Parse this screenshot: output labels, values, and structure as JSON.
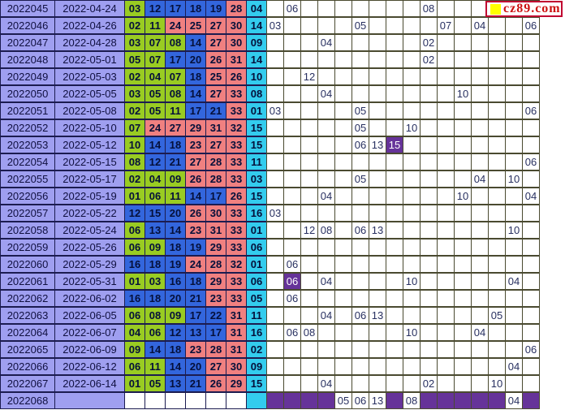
{
  "site": {
    "logo_text": "cz89.com",
    "logo_square_color": "#ffff00"
  },
  "colors": {
    "period_bg": "#9f9ff0",
    "green_ball": "#99cc22",
    "blue_ball": "#3366dd",
    "red_ball": "#f08080",
    "cyan_ball": "#33ccee",
    "hit_purple": "#663399",
    "grid_border": "#4a4a30",
    "table_border": "#1c1c50",
    "logo_red": "#cc1111"
  },
  "chart_data": {
    "type": "table",
    "legend": "lottery trend table: period, date, six red balls (green 01-11, blue 12-22, salmon 23-33), blue ball (cyan), then 16-column blue-ball trend grid; purple = hit cell; bottom purple band row = pending draw",
    "rows": [
      {
        "period": "2022045",
        "date": "2022-04-24",
        "reds": [
          [
            "03",
            "g"
          ],
          [
            "12",
            "b"
          ],
          [
            "17",
            "b"
          ],
          [
            "18",
            "b"
          ],
          [
            "19",
            "b"
          ],
          [
            "28",
            "r"
          ]
        ],
        "blue": "04",
        "grid": [
          "",
          "06",
          "",
          "",
          "",
          "",
          "",
          "",
          "",
          "08",
          "",
          "",
          "",
          "",
          "",
          ""
        ],
        "purple": [],
        "pending": false
      },
      {
        "period": "2022046",
        "date": "2022-04-26",
        "reds": [
          [
            "02",
            "g"
          ],
          [
            "11",
            "g"
          ],
          [
            "24",
            "r"
          ],
          [
            "25",
            "r"
          ],
          [
            "27",
            "r"
          ],
          [
            "30",
            "r"
          ]
        ],
        "blue": "14",
        "grid": [
          "03",
          "",
          "",
          "",
          "",
          "05",
          "",
          "",
          "",
          "",
          "07",
          "",
          "04",
          "",
          "",
          "06"
        ],
        "purple": [],
        "pending": false
      },
      {
        "period": "2022047",
        "date": "2022-04-28",
        "reds": [
          [
            "03",
            "g"
          ],
          [
            "07",
            "g"
          ],
          [
            "08",
            "g"
          ],
          [
            "14",
            "b"
          ],
          [
            "27",
            "r"
          ],
          [
            "30",
            "r"
          ]
        ],
        "blue": "09",
        "grid": [
          "",
          "",
          "",
          "04",
          "",
          "",
          "",
          "",
          "",
          "02",
          "",
          "",
          "",
          "",
          "",
          ""
        ],
        "purple": [],
        "pending": false
      },
      {
        "period": "2022048",
        "date": "2022-05-01",
        "reds": [
          [
            "05",
            "g"
          ],
          [
            "07",
            "g"
          ],
          [
            "17",
            "b"
          ],
          [
            "20",
            "b"
          ],
          [
            "26",
            "r"
          ],
          [
            "31",
            "r"
          ]
        ],
        "blue": "14",
        "grid": [
          "",
          "",
          "",
          "",
          "",
          "",
          "",
          "",
          "",
          "02",
          "",
          "",
          "",
          "",
          "",
          ""
        ],
        "purple": [],
        "pending": false
      },
      {
        "period": "2022049",
        "date": "2022-05-03",
        "reds": [
          [
            "02",
            "g"
          ],
          [
            "04",
            "g"
          ],
          [
            "07",
            "g"
          ],
          [
            "18",
            "b"
          ],
          [
            "25",
            "r"
          ],
          [
            "26",
            "r"
          ]
        ],
        "blue": "10",
        "grid": [
          "",
          "",
          "12",
          "",
          "",
          "",
          "",
          "",
          "",
          "",
          "",
          "",
          "",
          "",
          "",
          ""
        ],
        "purple": [],
        "pending": false
      },
      {
        "period": "2022050",
        "date": "2022-05-05",
        "reds": [
          [
            "03",
            "g"
          ],
          [
            "05",
            "g"
          ],
          [
            "08",
            "g"
          ],
          [
            "14",
            "b"
          ],
          [
            "27",
            "r"
          ],
          [
            "33",
            "r"
          ]
        ],
        "blue": "08",
        "grid": [
          "",
          "",
          "",
          "04",
          "",
          "",
          "",
          "",
          "",
          "",
          "",
          "10",
          "",
          "",
          "",
          ""
        ],
        "purple": [],
        "pending": false
      },
      {
        "period": "2022051",
        "date": "2022-05-08",
        "reds": [
          [
            "02",
            "g"
          ],
          [
            "05",
            "g"
          ],
          [
            "11",
            "g"
          ],
          [
            "17",
            "b"
          ],
          [
            "21",
            "b"
          ],
          [
            "33",
            "r"
          ]
        ],
        "blue": "01",
        "grid": [
          "03",
          "",
          "",
          "",
          "",
          "05",
          "",
          "",
          "",
          "",
          "",
          "",
          "",
          "",
          "",
          "06"
        ],
        "purple": [],
        "pending": false
      },
      {
        "period": "2022052",
        "date": "2022-05-10",
        "reds": [
          [
            "07",
            "g"
          ],
          [
            "24",
            "r"
          ],
          [
            "27",
            "r"
          ],
          [
            "29",
            "r"
          ],
          [
            "31",
            "r"
          ],
          [
            "32",
            "r"
          ]
        ],
        "blue": "15",
        "grid": [
          "",
          "",
          "",
          "",
          "",
          "05",
          "",
          "",
          "10",
          "",
          "",
          "",
          "",
          "",
          "",
          ""
        ],
        "purple": [],
        "pending": false
      },
      {
        "period": "2022053",
        "date": "2022-05-12",
        "reds": [
          [
            "10",
            "g"
          ],
          [
            "14",
            "b"
          ],
          [
            "18",
            "b"
          ],
          [
            "23",
            "r"
          ],
          [
            "27",
            "r"
          ],
          [
            "33",
            "r"
          ]
        ],
        "blue": "15",
        "grid": [
          "",
          "",
          "",
          "",
          "",
          "06",
          "13",
          "15",
          "",
          "",
          "",
          "",
          "",
          "",
          "",
          ""
        ],
        "purple": [
          8
        ],
        "pending": false
      },
      {
        "period": "2022054",
        "date": "2022-05-15",
        "reds": [
          [
            "08",
            "g"
          ],
          [
            "12",
            "b"
          ],
          [
            "21",
            "b"
          ],
          [
            "27",
            "r"
          ],
          [
            "28",
            "r"
          ],
          [
            "33",
            "r"
          ]
        ],
        "blue": "11",
        "grid": [
          "",
          "",
          "",
          "",
          "",
          "",
          "",
          "",
          "",
          "",
          "",
          "",
          "",
          "",
          "",
          "06"
        ],
        "purple": [],
        "pending": false
      },
      {
        "period": "2022055",
        "date": "2022-05-17",
        "reds": [
          [
            "02",
            "g"
          ],
          [
            "04",
            "g"
          ],
          [
            "09",
            "g"
          ],
          [
            "26",
            "r"
          ],
          [
            "28",
            "r"
          ],
          [
            "33",
            "r"
          ]
        ],
        "blue": "03",
        "grid": [
          "",
          "",
          "",
          "",
          "",
          "05",
          "",
          "",
          "",
          "",
          "",
          "",
          "04",
          "",
          "10",
          ""
        ],
        "purple": [],
        "pending": false
      },
      {
        "period": "2022056",
        "date": "2022-05-19",
        "reds": [
          [
            "01",
            "g"
          ],
          [
            "06",
            "g"
          ],
          [
            "11",
            "g"
          ],
          [
            "14",
            "b"
          ],
          [
            "17",
            "b"
          ],
          [
            "26",
            "r"
          ]
        ],
        "blue": "15",
        "grid": [
          "",
          "",
          "",
          "04",
          "",
          "",
          "",
          "",
          "",
          "",
          "",
          "10",
          "",
          "",
          "",
          "04"
        ],
        "purple": [],
        "pending": false
      },
      {
        "period": "2022057",
        "date": "2022-05-22",
        "reds": [
          [
            "12",
            "b"
          ],
          [
            "15",
            "b"
          ],
          [
            "20",
            "b"
          ],
          [
            "26",
            "r"
          ],
          [
            "30",
            "r"
          ],
          [
            "33",
            "r"
          ]
        ],
        "blue": "16",
        "grid": [
          "03",
          "",
          "",
          "",
          "",
          "",
          "",
          "",
          "",
          "",
          "",
          "",
          "",
          "",
          "",
          ""
        ],
        "purple": [],
        "pending": false
      },
      {
        "period": "2022058",
        "date": "2022-05-24",
        "reds": [
          [
            "06",
            "g"
          ],
          [
            "13",
            "b"
          ],
          [
            "14",
            "b"
          ],
          [
            "23",
            "r"
          ],
          [
            "31",
            "r"
          ],
          [
            "33",
            "r"
          ]
        ],
        "blue": "01",
        "grid": [
          "",
          "",
          "12",
          "08",
          "",
          "06",
          "13",
          "",
          "",
          "",
          "",
          "",
          "",
          "",
          "10",
          ""
        ],
        "purple": [],
        "pending": false
      },
      {
        "period": "2022059",
        "date": "2022-05-26",
        "reds": [
          [
            "06",
            "g"
          ],
          [
            "09",
            "g"
          ],
          [
            "18",
            "b"
          ],
          [
            "19",
            "b"
          ],
          [
            "29",
            "r"
          ],
          [
            "33",
            "r"
          ]
        ],
        "blue": "06",
        "grid": [
          "",
          "",
          "",
          "",
          "",
          "",
          "",
          "",
          "",
          "",
          "",
          "",
          "",
          "",
          "",
          ""
        ],
        "purple": [],
        "pending": false
      },
      {
        "period": "2022060",
        "date": "2022-05-29",
        "reds": [
          [
            "16",
            "b"
          ],
          [
            "18",
            "b"
          ],
          [
            "19",
            "b"
          ],
          [
            "24",
            "r"
          ],
          [
            "28",
            "r"
          ],
          [
            "32",
            "r"
          ]
        ],
        "blue": "01",
        "grid": [
          "",
          "06",
          "",
          "",
          "",
          "",
          "",
          "",
          "",
          "",
          "",
          "",
          "",
          "",
          "",
          ""
        ],
        "purple": [],
        "pending": false
      },
      {
        "period": "2022061",
        "date": "2022-05-31",
        "reds": [
          [
            "01",
            "g"
          ],
          [
            "03",
            "g"
          ],
          [
            "16",
            "b"
          ],
          [
            "18",
            "b"
          ],
          [
            "29",
            "r"
          ],
          [
            "33",
            "r"
          ]
        ],
        "blue": "06",
        "grid": [
          "",
          "06",
          "",
          "04",
          "",
          "",
          "",
          "",
          "10",
          "",
          "",
          "",
          "",
          "",
          "04",
          ""
        ],
        "purple": [
          2
        ],
        "pending": false
      },
      {
        "period": "2022062",
        "date": "2022-06-02",
        "reds": [
          [
            "16",
            "b"
          ],
          [
            "18",
            "b"
          ],
          [
            "20",
            "b"
          ],
          [
            "21",
            "b"
          ],
          [
            "23",
            "r"
          ],
          [
            "33",
            "r"
          ]
        ],
        "blue": "05",
        "grid": [
          "",
          "06",
          "",
          "",
          "",
          "",
          "",
          "",
          "",
          "",
          "",
          "",
          "",
          "",
          "",
          ""
        ],
        "purple": [],
        "pending": false
      },
      {
        "period": "2022063",
        "date": "2022-06-05",
        "reds": [
          [
            "06",
            "g"
          ],
          [
            "08",
            "g"
          ],
          [
            "09",
            "g"
          ],
          [
            "17",
            "b"
          ],
          [
            "22",
            "b"
          ],
          [
            "31",
            "r"
          ]
        ],
        "blue": "11",
        "grid": [
          "",
          "",
          "",
          "04",
          "",
          "06",
          "13",
          "",
          "",
          "",
          "",
          "",
          "",
          "05",
          "",
          ""
        ],
        "purple": [],
        "pending": false
      },
      {
        "period": "2022064",
        "date": "2022-06-07",
        "reds": [
          [
            "04",
            "g"
          ],
          [
            "06",
            "g"
          ],
          [
            "12",
            "b"
          ],
          [
            "13",
            "b"
          ],
          [
            "17",
            "b"
          ],
          [
            "31",
            "r"
          ]
        ],
        "blue": "16",
        "grid": [
          "",
          "06",
          "08",
          "",
          "",
          "",
          "",
          "",
          "10",
          "",
          "",
          "",
          "04",
          "",
          "",
          ""
        ],
        "purple": [],
        "pending": false
      },
      {
        "period": "2022065",
        "date": "2022-06-09",
        "reds": [
          [
            "09",
            "g"
          ],
          [
            "14",
            "b"
          ],
          [
            "18",
            "b"
          ],
          [
            "23",
            "r"
          ],
          [
            "28",
            "r"
          ],
          [
            "31",
            "r"
          ]
        ],
        "blue": "02",
        "grid": [
          "",
          "",
          "",
          "",
          "",
          "",
          "",
          "",
          "",
          "",
          "",
          "",
          "",
          "",
          "",
          "06"
        ],
        "purple": [],
        "pending": false
      },
      {
        "period": "2022066",
        "date": "2022-06-12",
        "reds": [
          [
            "06",
            "g"
          ],
          [
            "11",
            "g"
          ],
          [
            "14",
            "b"
          ],
          [
            "20",
            "b"
          ],
          [
            "27",
            "r"
          ],
          [
            "30",
            "r"
          ]
        ],
        "blue": "09",
        "grid": [
          "",
          "",
          "",
          "",
          "",
          "",
          "",
          "",
          "",
          "",
          "",
          "",
          "",
          "",
          "04",
          ""
        ],
        "purple": [],
        "pending": false
      },
      {
        "period": "2022067",
        "date": "2022-06-14",
        "reds": [
          [
            "01",
            "g"
          ],
          [
            "05",
            "g"
          ],
          [
            "13",
            "b"
          ],
          [
            "21",
            "b"
          ],
          [
            "26",
            "r"
          ],
          [
            "29",
            "r"
          ]
        ],
        "blue": "15",
        "grid": [
          "",
          "",
          "",
          "04",
          "",
          "",
          "",
          "",
          "",
          "02",
          "",
          "",
          "",
          "10",
          "",
          ""
        ],
        "purple": [],
        "pending": false
      },
      {
        "period": "2022068",
        "date": "",
        "reds": [
          [
            "",
            "w"
          ],
          [
            "",
            "w"
          ],
          [
            "",
            "w"
          ],
          [
            "",
            "w"
          ],
          [
            "",
            "w"
          ],
          [
            "",
            "w"
          ]
        ],
        "blue": "",
        "grid": [
          "",
          "",
          "",
          "",
          "05",
          "06",
          "13",
          "",
          "08",
          "",
          "",
          "",
          "",
          "",
          "04",
          ""
        ],
        "purple": [],
        "pending": true
      }
    ]
  }
}
